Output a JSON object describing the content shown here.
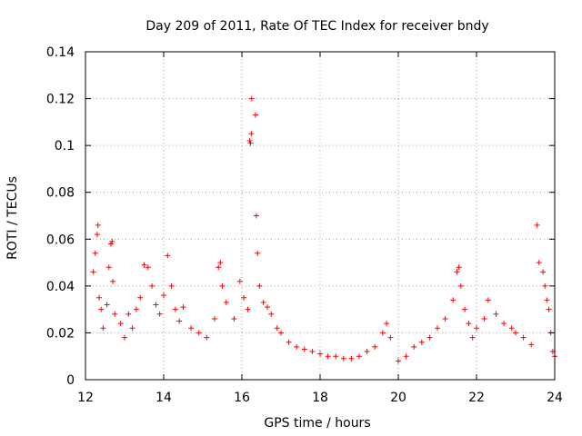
{
  "chart_data": {
    "type": "scatter",
    "title": "Day 209 of 2011, Rate Of TEC Index for receiver bndy",
    "xlabel": "GPS time / hours",
    "ylabel": "ROTI / TECUs",
    "xlim": [
      12,
      24
    ],
    "ylim": [
      0,
      0.14
    ],
    "x_ticks": [
      "12",
      "14",
      "16",
      "18",
      "20",
      "22",
      "24"
    ],
    "y_ticks": [
      "0",
      "0.02",
      "0.04",
      "0.06",
      "0.08",
      "0.1",
      "0.12",
      "0.14"
    ],
    "grid": true,
    "marker": "+",
    "series_color": "#ff0000",
    "series": [
      {
        "name": "ROTI",
        "points": [
          [
            12.2,
            0.046
          ],
          [
            12.25,
            0.054
          ],
          [
            12.3,
            0.062
          ],
          [
            12.32,
            0.066
          ],
          [
            12.35,
            0.035
          ],
          [
            12.4,
            0.03
          ],
          [
            12.45,
            0.022
          ],
          [
            12.55,
            0.032
          ],
          [
            12.6,
            0.048
          ],
          [
            12.65,
            0.058
          ],
          [
            12.68,
            0.059
          ],
          [
            12.7,
            0.042
          ],
          [
            12.75,
            0.028
          ],
          [
            12.9,
            0.024
          ],
          [
            13.0,
            0.018
          ],
          [
            13.1,
            0.028
          ],
          [
            13.2,
            0.022
          ],
          [
            13.3,
            0.03
          ],
          [
            13.4,
            0.035
          ],
          [
            13.5,
            0.049
          ],
          [
            13.6,
            0.048
          ],
          [
            13.7,
            0.04
          ],
          [
            13.8,
            0.032
          ],
          [
            13.9,
            0.028
          ],
          [
            14.0,
            0.036
          ],
          [
            14.1,
            0.053
          ],
          [
            14.2,
            0.04
          ],
          [
            14.3,
            0.03
          ],
          [
            14.4,
            0.025
          ],
          [
            14.5,
            0.031
          ],
          [
            14.7,
            0.022
          ],
          [
            14.9,
            0.02
          ],
          [
            15.1,
            0.018
          ],
          [
            15.3,
            0.026
          ],
          [
            15.4,
            0.048
          ],
          [
            15.45,
            0.05
          ],
          [
            15.5,
            0.04
          ],
          [
            15.6,
            0.033
          ],
          [
            15.8,
            0.026
          ],
          [
            15.95,
            0.042
          ],
          [
            16.05,
            0.035
          ],
          [
            16.15,
            0.03
          ],
          [
            16.2,
            0.102
          ],
          [
            16.22,
            0.101
          ],
          [
            16.24,
            0.105
          ],
          [
            16.25,
            0.12
          ],
          [
            16.35,
            0.113
          ],
          [
            16.37,
            0.07
          ],
          [
            16.4,
            0.054
          ],
          [
            16.45,
            0.04
          ],
          [
            16.55,
            0.033
          ],
          [
            16.65,
            0.031
          ],
          [
            16.75,
            0.028
          ],
          [
            16.9,
            0.022
          ],
          [
            17.0,
            0.02
          ],
          [
            17.2,
            0.016
          ],
          [
            17.4,
            0.014
          ],
          [
            17.6,
            0.013
          ],
          [
            17.8,
            0.012
          ],
          [
            18.0,
            0.011
          ],
          [
            18.2,
            0.01
          ],
          [
            18.4,
            0.01
          ],
          [
            18.6,
            0.009
          ],
          [
            18.8,
            0.009
          ],
          [
            19.0,
            0.01
          ],
          [
            19.2,
            0.012
          ],
          [
            19.4,
            0.014
          ],
          [
            19.6,
            0.02
          ],
          [
            19.7,
            0.024
          ],
          [
            19.8,
            0.018
          ],
          [
            20.0,
            0.008
          ],
          [
            20.2,
            0.01
          ],
          [
            20.4,
            0.014
          ],
          [
            20.6,
            0.016
          ],
          [
            20.8,
            0.018
          ],
          [
            21.0,
            0.022
          ],
          [
            21.2,
            0.026
          ],
          [
            21.4,
            0.034
          ],
          [
            21.5,
            0.046
          ],
          [
            21.55,
            0.048
          ],
          [
            21.6,
            0.04
          ],
          [
            21.7,
            0.03
          ],
          [
            21.8,
            0.024
          ],
          [
            21.9,
            0.018
          ],
          [
            22.0,
            0.022
          ],
          [
            22.2,
            0.026
          ],
          [
            22.3,
            0.034
          ],
          [
            22.5,
            0.028
          ],
          [
            22.7,
            0.024
          ],
          [
            22.9,
            0.022
          ],
          [
            23.0,
            0.02
          ],
          [
            23.2,
            0.018
          ],
          [
            23.4,
            0.015
          ],
          [
            23.55,
            0.066
          ],
          [
            23.6,
            0.05
          ],
          [
            23.7,
            0.046
          ],
          [
            23.75,
            0.04
          ],
          [
            23.8,
            0.034
          ],
          [
            23.85,
            0.03
          ],
          [
            23.9,
            0.02
          ],
          [
            23.95,
            0.012
          ],
          [
            24.0,
            0.01
          ]
        ]
      }
    ]
  }
}
